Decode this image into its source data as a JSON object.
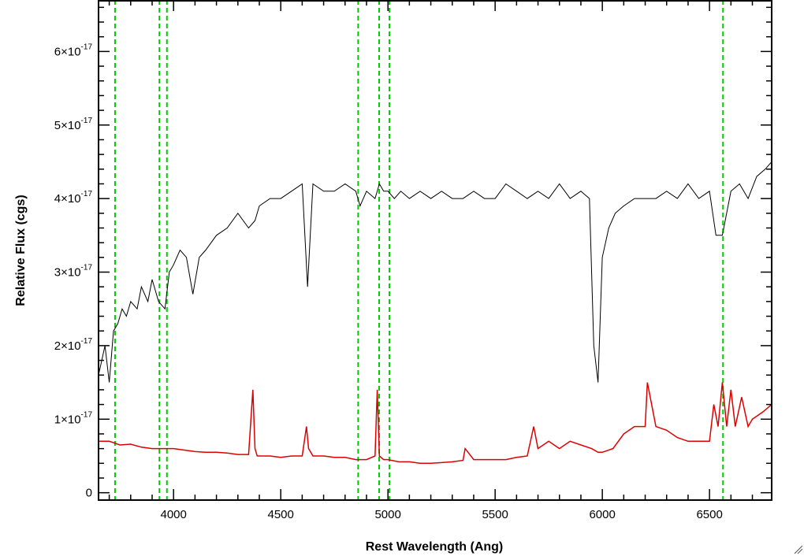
{
  "chart_data": {
    "type": "line",
    "title": "",
    "xlabel": "Rest Wavelength (Ang)",
    "ylabel": "Relative Flux (cgs)",
    "xlim": [
      3650,
      6790
    ],
    "ylim": [
      -0.1,
      6.7
    ],
    "y_scale_exponent_label": "10",
    "y_exponent": "-17",
    "x_ticks": [
      4000,
      4500,
      5000,
      5500,
      6000,
      6500
    ],
    "x_tick_labels": [
      "4000",
      "4500",
      "5000",
      "5500",
      "6000",
      "6500"
    ],
    "y_ticks": [
      {
        "value": 0,
        "mantissa": "0",
        "exp": ""
      },
      {
        "value": 1,
        "mantissa": "1×10",
        "exp": "-17"
      },
      {
        "value": 2,
        "mantissa": "2×10",
        "exp": "-17"
      },
      {
        "value": 3,
        "mantissa": "3×10",
        "exp": "-17"
      },
      {
        "value": 4,
        "mantissa": "4×10",
        "exp": "-17"
      },
      {
        "value": 5,
        "mantissa": "5×10",
        "exp": "-17"
      },
      {
        "value": 6,
        "mantissa": "6×10",
        "exp": "-17"
      }
    ],
    "reference_lines": [
      3727,
      3934,
      3969,
      4861,
      4959,
      5007,
      6563
    ],
    "reference_line_color": "#00cc00",
    "series": [
      {
        "color": "#000000",
        "description_values_units": "1e-17 flux",
        "x": [
          3650,
          3680,
          3700,
          3720,
          3740,
          3760,
          3780,
          3800,
          3830,
          3850,
          3880,
          3900,
          3930,
          3960,
          3980,
          4000,
          4030,
          4060,
          4090,
          4120,
          4150,
          4200,
          4250,
          4300,
          4350,
          4380,
          4400,
          4450,
          4500,
          4550,
          4600,
          4625,
          4650,
          4700,
          4750,
          4800,
          4850,
          4870,
          4900,
          4940,
          4960,
          4980,
          5000,
          5030,
          5060,
          5100,
          5150,
          5200,
          5250,
          5300,
          5350,
          5400,
          5450,
          5500,
          5550,
          5600,
          5650,
          5700,
          5750,
          5800,
          5850,
          5900,
          5940,
          5960,
          5980,
          6000,
          6030,
          6060,
          6100,
          6150,
          6200,
          6250,
          6300,
          6350,
          6400,
          6450,
          6500,
          6530,
          6560,
          6600,
          6640,
          6680,
          6720,
          6760,
          6790
        ],
        "y": [
          1.6,
          2.0,
          1.5,
          2.2,
          2.3,
          2.5,
          2.4,
          2.6,
          2.5,
          2.8,
          2.6,
          2.9,
          2.6,
          2.5,
          3.0,
          3.1,
          3.3,
          3.2,
          2.7,
          3.2,
          3.3,
          3.5,
          3.6,
          3.8,
          3.6,
          3.7,
          3.9,
          4.0,
          4.0,
          4.1,
          4.2,
          2.8,
          4.2,
          4.1,
          4.1,
          4.2,
          4.1,
          3.9,
          4.1,
          4.0,
          4.2,
          4.1,
          4.1,
          4.0,
          4.1,
          4.0,
          4.1,
          4.0,
          4.1,
          4.0,
          4.0,
          4.1,
          4.0,
          4.0,
          4.2,
          4.1,
          4.0,
          4.1,
          4.0,
          4.2,
          4.0,
          4.1,
          4.0,
          2.0,
          1.5,
          3.2,
          3.6,
          3.8,
          3.9,
          4.0,
          4.0,
          4.0,
          4.1,
          4.0,
          4.2,
          4.0,
          4.1,
          3.5,
          3.5,
          4.1,
          4.2,
          4.0,
          4.3,
          4.4,
          4.5
        ]
      },
      {
        "color": "#dd0000",
        "description_values_units": "1e-17 flux",
        "x": [
          3650,
          3700,
          3750,
          3800,
          3850,
          3900,
          3950,
          4000,
          4050,
          4100,
          4150,
          4200,
          4250,
          4300,
          4350,
          4370,
          4380,
          4390,
          4400,
          4450,
          4500,
          4550,
          4600,
          4620,
          4630,
          4650,
          4700,
          4750,
          4800,
          4850,
          4900,
          4940,
          4950,
          4960,
          4980,
          5000,
          5050,
          5100,
          5150,
          5200,
          5250,
          5300,
          5350,
          5360,
          5400,
          5450,
          5500,
          5550,
          5600,
          5650,
          5680,
          5700,
          5750,
          5800,
          5850,
          5900,
          5950,
          5980,
          6000,
          6050,
          6100,
          6150,
          6200,
          6210,
          6250,
          6300,
          6350,
          6400,
          6450,
          6500,
          6520,
          6540,
          6560,
          6580,
          6600,
          6620,
          6650,
          6680,
          6700,
          6750,
          6790
        ],
        "y": [
          0.7,
          0.7,
          0.65,
          0.66,
          0.62,
          0.6,
          0.6,
          0.6,
          0.58,
          0.56,
          0.55,
          0.55,
          0.54,
          0.52,
          0.52,
          1.4,
          0.6,
          0.5,
          0.5,
          0.5,
          0.48,
          0.5,
          0.5,
          0.9,
          0.6,
          0.5,
          0.5,
          0.48,
          0.48,
          0.45,
          0.45,
          0.5,
          1.4,
          0.5,
          0.45,
          0.45,
          0.42,
          0.42,
          0.4,
          0.4,
          0.41,
          0.42,
          0.44,
          0.6,
          0.45,
          0.45,
          0.45,
          0.45,
          0.48,
          0.5,
          0.9,
          0.6,
          0.7,
          0.6,
          0.7,
          0.65,
          0.6,
          0.55,
          0.55,
          0.6,
          0.8,
          0.9,
          0.9,
          1.5,
          0.9,
          0.85,
          0.75,
          0.7,
          0.7,
          0.7,
          1.2,
          0.9,
          1.5,
          0.9,
          1.4,
          0.9,
          1.3,
          0.9,
          1.0,
          1.1,
          1.2
        ]
      }
    ],
    "grid": false,
    "legend": "none"
  }
}
